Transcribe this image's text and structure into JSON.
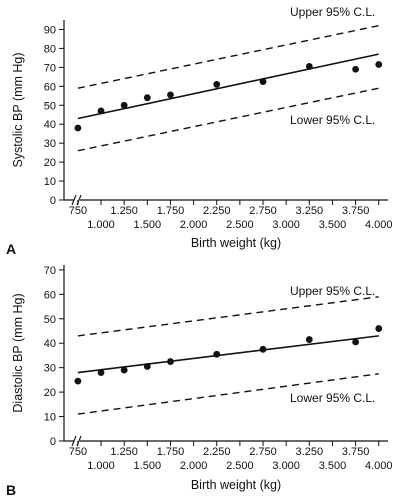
{
  "chart_data": [
    {
      "type": "scatter",
      "panel_label": "A",
      "xlabel": "Birth weight (kg)",
      "ylabel": "Systolic BP (mm Hg)",
      "ylim": [
        0,
        95
      ],
      "yticks": [
        0,
        10,
        20,
        30,
        40,
        50,
        60,
        70,
        80,
        90
      ],
      "xlim": [
        0.6,
        4.1
      ],
      "xticks_lower": [
        "1.000",
        "1.500",
        "2.000",
        "2.500",
        "3.000",
        "3.500",
        "4.000"
      ],
      "xticks_lower_values": [
        1.0,
        1.5,
        2.0,
        2.5,
        3.0,
        3.5,
        4.0
      ],
      "xticks_upper": [
        "750",
        "1.250",
        "1.750",
        "2.250",
        "2.750",
        "3.250",
        "3.750"
      ],
      "xticks_upper_values": [
        0.75,
        1.25,
        1.75,
        2.25,
        2.75,
        3.25,
        3.75
      ],
      "axis_break": true,
      "grid": false,
      "points": {
        "x": [
          0.75,
          1.0,
          1.25,
          1.5,
          1.75,
          2.25,
          2.75,
          3.25,
          3.75,
          4.0
        ],
        "y": [
          38,
          47,
          50,
          54,
          55.5,
          61,
          62.5,
          70.5,
          69,
          71.5
        ]
      },
      "lines": [
        {
          "style": "solid",
          "x": [
            0.75,
            4.0
          ],
          "y": [
            43,
            77
          ]
        },
        {
          "style": "dashed",
          "x": [
            0.75,
            4.0
          ],
          "y": [
            59,
            92
          ]
        },
        {
          "style": "dashed",
          "x": [
            0.75,
            4.0
          ],
          "y": [
            26,
            59
          ]
        }
      ],
      "annotations": {
        "upper": "Upper 95% C.L.",
        "lower": "Lower 95% C.L."
      }
    },
    {
      "type": "scatter",
      "panel_label": "B",
      "xlabel": "Birth weight (kg)",
      "ylabel": "Diastolic BP (mm Hg)",
      "ylim": [
        0,
        72
      ],
      "yticks": [
        0,
        10,
        20,
        30,
        40,
        50,
        60,
        70
      ],
      "xlim": [
        0.6,
        4.1
      ],
      "xticks_lower": [
        "1.000",
        "1.500",
        "2.000",
        "2.500",
        "3.000",
        "3.500",
        "4.000"
      ],
      "xticks_lower_values": [
        1.0,
        1.5,
        2.0,
        2.5,
        3.0,
        3.5,
        4.0
      ],
      "xticks_upper": [
        "750",
        "1.250",
        "1.750",
        "2.250",
        "2.750",
        "3.250",
        "3.750"
      ],
      "xticks_upper_values": [
        0.75,
        1.25,
        1.75,
        2.25,
        2.75,
        3.25,
        3.75
      ],
      "axis_break": true,
      "grid": false,
      "points": {
        "x": [
          0.75,
          1.0,
          1.25,
          1.5,
          1.75,
          2.25,
          2.75,
          3.25,
          3.75,
          4.0
        ],
        "y": [
          24.5,
          28,
          29,
          30.5,
          32.5,
          35.5,
          37.5,
          41.5,
          40.5,
          46
        ]
      },
      "lines": [
        {
          "style": "solid",
          "x": [
            0.75,
            4.0
          ],
          "y": [
            28,
            43
          ]
        },
        {
          "style": "dashed",
          "x": [
            0.75,
            4.0
          ],
          "y": [
            43,
            59
          ]
        },
        {
          "style": "dashed",
          "x": [
            0.75,
            4.0
          ],
          "y": [
            11,
            27.5
          ]
        }
      ],
      "annotations": {
        "upper": "Upper 95% C.L.",
        "lower": "Lower 95% C.L."
      }
    }
  ]
}
